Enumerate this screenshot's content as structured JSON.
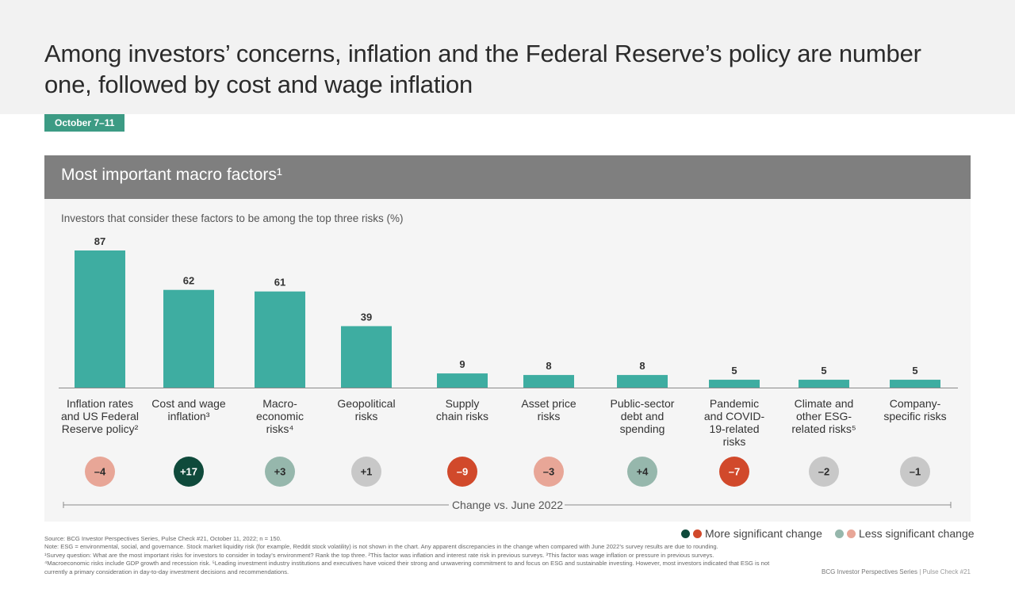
{
  "title": "Among investors’ concerns, inflation and the Federal Reserve’s policy are number one, followed by cost and wage inflation",
  "date_tag": "October 7–11",
  "panel": {
    "title": "Most important macro factors¹",
    "subtitle": "Investors that consider these factors to be among the top three risks (%)"
  },
  "chart_data": {
    "type": "bar",
    "title": "Most important macro factors¹",
    "ylabel": "Investors that consider these factors to be among the top three risks (%)",
    "ylim": [
      0,
      87
    ],
    "categories": [
      [
        "Inflation rates",
        "and US Federal",
        "Reserve policy²"
      ],
      [
        "Cost and wage",
        "inflation³"
      ],
      [
        "Macro-",
        "economic",
        "risks⁴"
      ],
      [
        "Geopolitical",
        "risks"
      ],
      [
        "Supply",
        "chain risks"
      ],
      [
        "Asset price",
        "risks"
      ],
      [
        "Public-sector",
        "debt and",
        "spending"
      ],
      [
        "Pandemic",
        "and COVID-",
        "19-related",
        "risks"
      ],
      [
        "Climate and",
        "other ESG-",
        "related risks⁵"
      ],
      [
        "Company-",
        "specific risks"
      ]
    ],
    "values": [
      87,
      62,
      61,
      39,
      9,
      8,
      8,
      5,
      5,
      5
    ],
    "value_labels": [
      "87",
      "62",
      "61",
      "39",
      "9",
      "8",
      "8",
      "5",
      "5",
      "5"
    ],
    "changes": [
      {
        "label": "–4",
        "value": -4,
        "significance": "less",
        "color": "#e8a697"
      },
      {
        "label": "+17",
        "value": 17,
        "significance": "more",
        "color": "#0f4a3b"
      },
      {
        "label": "+3",
        "value": 3,
        "significance": "less",
        "color": "#96b7ac"
      },
      {
        "label": "+1",
        "value": 1,
        "significance": "none",
        "color": "#c8c8c8"
      },
      {
        "label": "–9",
        "value": -9,
        "significance": "more",
        "color": "#d1492b"
      },
      {
        "label": "–3",
        "value": -3,
        "significance": "less",
        "color": "#e8a697"
      },
      {
        "label": "+4",
        "value": 4,
        "significance": "less",
        "color": "#96b7ac"
      },
      {
        "label": "–7",
        "value": -7,
        "significance": "more",
        "color": "#d1492b"
      },
      {
        "label": "–2",
        "value": -2,
        "significance": "none",
        "color": "#c8c8c8"
      },
      {
        "label": "–1",
        "value": -1,
        "significance": "none",
        "color": "#c8c8c8"
      }
    ],
    "change_axis_label": "Change vs. June 2022",
    "bar_color": "#3eada1",
    "legend": {
      "more": {
        "label": "More significant change",
        "colors": [
          "#0f4a3b",
          "#d1492b"
        ]
      },
      "less": {
        "label": "Less significant change",
        "colors": [
          "#96b7ac",
          "#e8a697"
        ]
      }
    }
  },
  "footnotes": [
    "Source: BCG Investor Perspectives Series, Pulse Check #21, October 11, 2022; n = 150.",
    "Note: ESG = environmental, social, and governance. Stock market liquidity risk (for example, Reddit stock volatility) is not shown in the chart. Any apparent discrepancies in the change when compared with June 2022’s survey results are due to rounding.",
    "¹Survey question: What are the most important risks for investors to consider in today’s environment? Rank the top three. ²This factor was inflation and interest rate risk in previous surveys. ³This factor was wage inflation or pressure in previous surveys.",
    "⁴Macroeconomic risks include GDP growth and recession risk. ⁵Leading investment industry institutions and executives have voiced their strong and unwavering commitment to and focus on ESG and sustainable investing. However, most investors indicated that ESG is not currently a primary consideration in day-to-day investment decisions and recommendations."
  ],
  "footer": {
    "brand": "BCG Investor Perspectives Series",
    "separator": " | ",
    "issue": "Pulse Check #21"
  }
}
